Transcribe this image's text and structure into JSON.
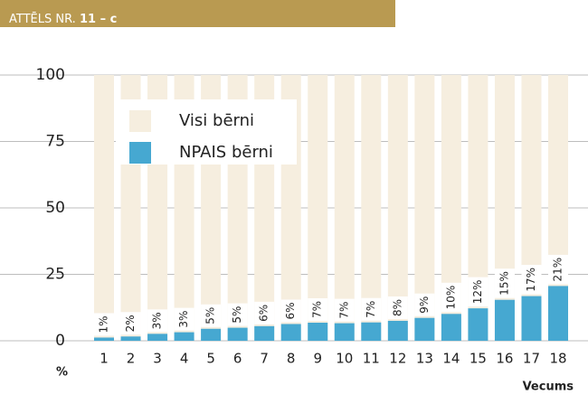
{
  "chart_data": {
    "type": "bar",
    "figure_label": "ATTĒLS NR.",
    "figure_number": "11 – c",
    "x_label": "Vecums",
    "y_label": "%",
    "categories": [
      "1",
      "2",
      "3",
      "4",
      "5",
      "6",
      "7",
      "8",
      "9",
      "10",
      "11",
      "12",
      "13",
      "14",
      "15",
      "16",
      "17",
      "18"
    ],
    "series": [
      {
        "name": "Visi bērni",
        "color": "#f6eedf",
        "values": [
          100,
          100,
          100,
          100,
          100,
          100,
          100,
          100,
          100,
          100,
          100,
          100,
          100,
          100,
          100,
          100,
          100,
          100
        ]
      },
      {
        "name": "NPAIS bērni",
        "color": "#46a8d1",
        "values": [
          1.2,
          1.6,
          2.6,
          3.2,
          4.5,
          4.9,
          5.5,
          6.3,
          6.8,
          6.6,
          6.9,
          7.5,
          8.6,
          10.1,
          12.2,
          15.4,
          16.8,
          20.6
        ],
        "value_labels": [
          "1%",
          "2%",
          "3%",
          "3%",
          "5%",
          "5%",
          "6%",
          "6%",
          "7%",
          "7%",
          "7%",
          "8%",
          "9%",
          "10%",
          "12%",
          "15%",
          "17%",
          "21%"
        ]
      }
    ],
    "ylim": [
      0,
      100
    ],
    "yticks": [
      0,
      25,
      50,
      75,
      100
    ],
    "grid": true,
    "legend": "upper left",
    "header_color": "#b99a51"
  }
}
